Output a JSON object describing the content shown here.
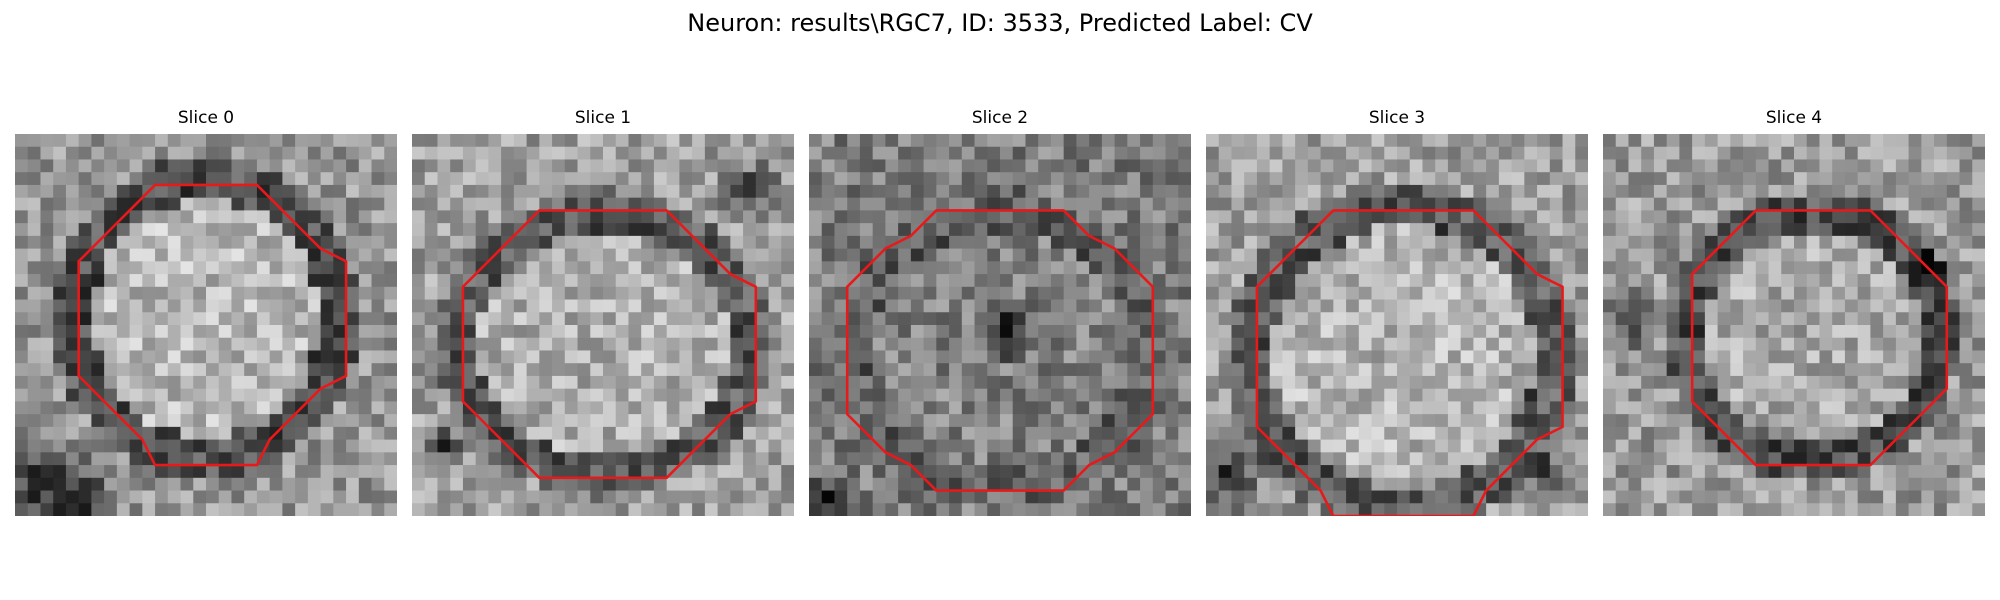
{
  "figure": {
    "title": "Neuron: results\\RGC7, ID: 3533, Predicted Label: CV"
  },
  "slices": [
    {
      "title": "Slice 0"
    },
    {
      "title": "Slice 1"
    },
    {
      "title": "Slice 2"
    },
    {
      "title": "Slice 3"
    },
    {
      "title": "Slice 4"
    }
  ],
  "contour_color": "#e8191b"
}
